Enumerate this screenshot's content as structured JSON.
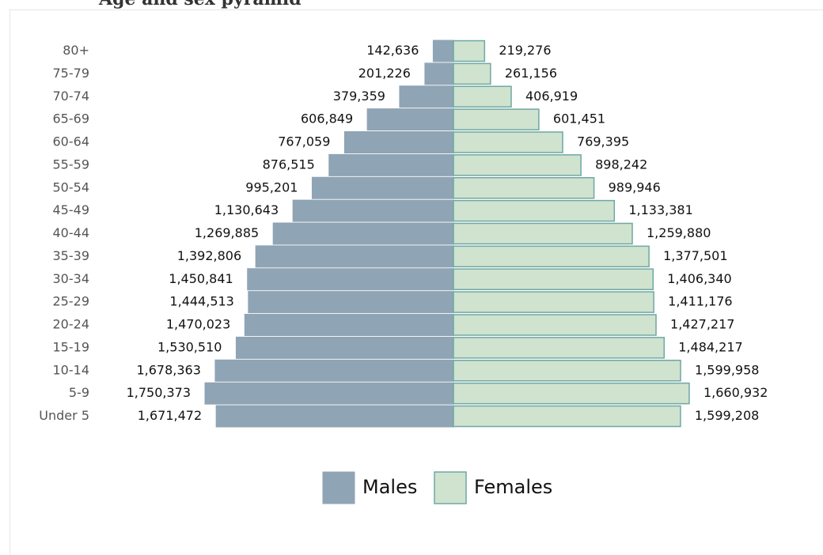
{
  "header": {
    "title_fragment": "Age and sex pyramid"
  },
  "colors": {
    "males_fill": "#8fa4b5",
    "males_stroke": "#8fa4b5",
    "females_fill": "#cfe3cf",
    "females_stroke": "#6fa8a3"
  },
  "chart_data": {
    "type": "bar",
    "orientation": "horizontal",
    "layout": "population-pyramid",
    "categories": [
      "80+",
      "75-79",
      "70-74",
      "65-69",
      "60-64",
      "55-59",
      "50-54",
      "45-49",
      "40-44",
      "35-39",
      "30-34",
      "25-29",
      "20-24",
      "15-19",
      "10-14",
      "5-9",
      "Under 5"
    ],
    "series": [
      {
        "name": "Males",
        "side": "left",
        "values": [
          142636,
          201226,
          379359,
          606849,
          767059,
          876515,
          995201,
          1130643,
          1269885,
          1392806,
          1450841,
          1444513,
          1470023,
          1530510,
          1678363,
          1750373,
          1671472
        ],
        "labels": [
          "142,636",
          "201,226",
          "379,359",
          "606,849",
          "767,059",
          "876,515",
          "995,201",
          "1,130,643",
          "1,269,885",
          "1,392,806",
          "1,450,841",
          "1,444,513",
          "1,470,023",
          "1,530,510",
          "1,678,363",
          "1,750,373",
          "1,671,472"
        ]
      },
      {
        "name": "Females",
        "side": "right",
        "values": [
          219276,
          261156,
          406919,
          601451,
          769395,
          898242,
          989946,
          1133381,
          1259880,
          1377501,
          1406340,
          1411176,
          1427217,
          1484217,
          1599958,
          1660932,
          1599208
        ],
        "labels": [
          "219,276",
          "261,156",
          "406,919",
          "601,451",
          "769,395",
          "898,242",
          "989,946",
          "1,133,381",
          "1,259,880",
          "1,377,501",
          "1,406,340",
          "1,411,176",
          "1,427,217",
          "1,484,217",
          "1,599,958",
          "1,660,932",
          "1,599,208"
        ]
      }
    ],
    "title": "",
    "xlabel": "",
    "ylabel": "",
    "xlim": [
      0,
      1750373
    ],
    "grid": false,
    "legend": "bottom-center"
  }
}
